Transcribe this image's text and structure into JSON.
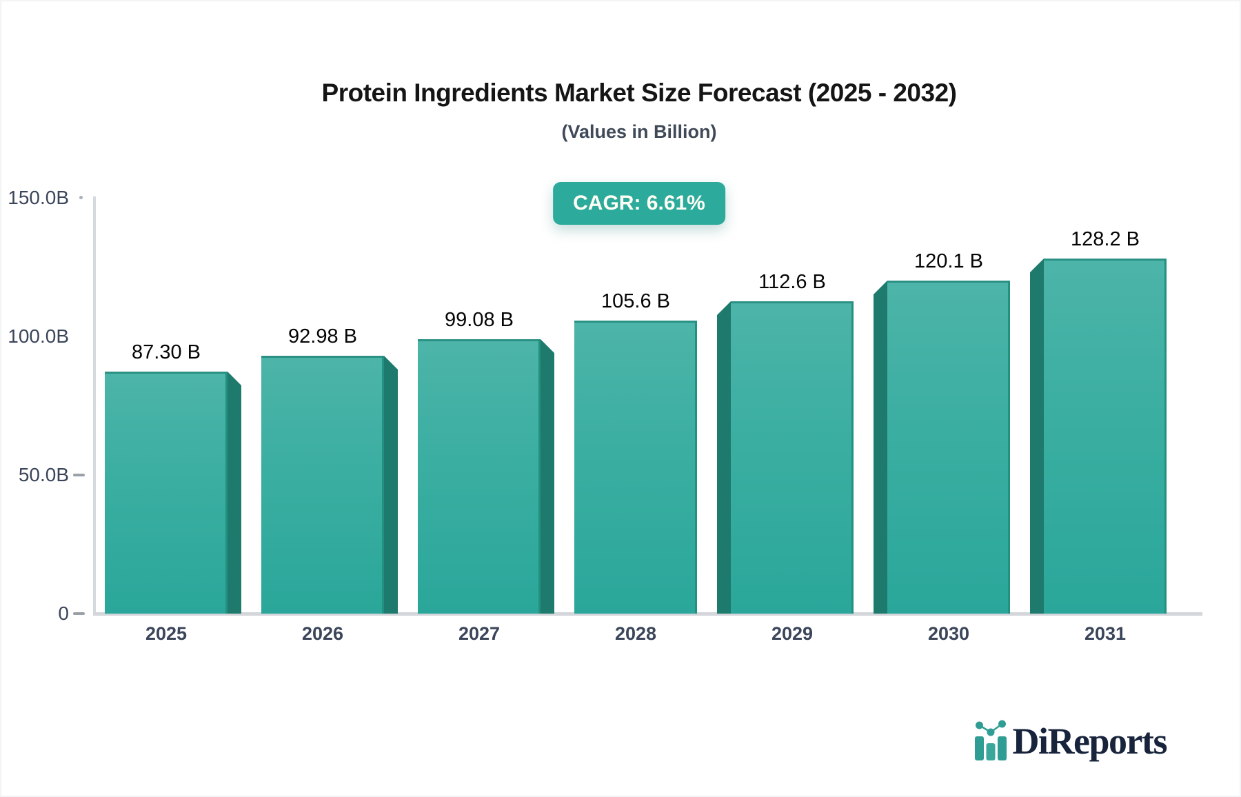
{
  "header": {
    "title": "Protein Ingredients Market Size Forecast (2025 - 2032)",
    "subtitle": "(Values in Billion)"
  },
  "badge": {
    "text": "CAGR: 6.61%",
    "bg_color": "#2caa9c",
    "text_color": "#fffef4"
  },
  "chart_data": {
    "type": "bar",
    "title": "Protein Ingredients Market Size Forecast (2025 - 2032)",
    "subtitle": "(Values in Billion)",
    "cagr": "6.61%",
    "unit": "Billion",
    "categories": [
      "2025",
      "2026",
      "2027",
      "2028",
      "2029",
      "2030",
      "2031"
    ],
    "values": [
      87.3,
      92.98,
      99.08,
      105.6,
      112.6,
      120.1,
      128.2
    ],
    "value_labels": [
      "87.30 B",
      "92.98 B",
      "99.08 B",
      "105.6 B",
      "112.6 B",
      "120.1 B",
      "128.2 B"
    ],
    "ylim": [
      0,
      150
    ],
    "y_ticks": [
      {
        "label": "150.0B",
        "value": 150
      },
      {
        "label": "100.0B",
        "value": 100
      },
      {
        "label": "50.0B",
        "value": 50
      },
      {
        "label": "0",
        "value": 0
      }
    ],
    "grid": false,
    "legend": false,
    "bar_color_top": "#4db4a9",
    "bar_color_bottom": "#2aa79a",
    "bar_side_color": "#1f7a6e",
    "axis_color": "#d5d8dc",
    "effect": "3d-perspective"
  },
  "logo": {
    "text": "DiReports",
    "icon": "bar-chart-logo-icon",
    "text_color": "#17243b",
    "accent_color": "#2f9d93"
  }
}
